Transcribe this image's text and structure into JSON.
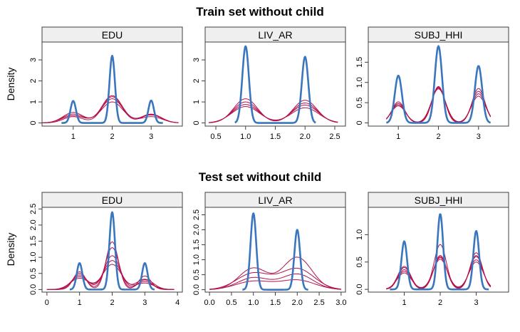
{
  "colors": {
    "observed": "#3a76bd",
    "imputed": "#b2124f",
    "strip": "#efefef",
    "frame": "#3f3f3f"
  },
  "ylabel": "Density",
  "rows": [
    {
      "title": "Train set without child"
    },
    {
      "title": "Test set without child"
    }
  ],
  "chart_data": [
    {
      "type": "line",
      "row": 0,
      "panel": 0,
      "strip": "EDU",
      "xlim": [
        0.2,
        3.8
      ],
      "ylim": [
        -0.15,
        3.85
      ],
      "xticks": [
        1,
        2,
        3
      ],
      "xtick_labels": [
        "1",
        "2",
        "3"
      ],
      "yticks": [
        0,
        1,
        2,
        3
      ],
      "ytick_labels": [
        "0",
        "1",
        "2",
        "3"
      ],
      "series": [
        {
          "kind": "observed",
          "x_range": [
            0.7,
            3.3
          ],
          "centers": [
            1,
            2,
            3
          ],
          "heights": [
            1.05,
            3.2,
            1.07
          ],
          "sd": 0.07
        },
        {
          "kind": "imputed",
          "x_range": [
            0.2,
            3.7
          ],
          "centers": [
            1,
            2,
            3
          ],
          "heights": [
            0.5,
            1.3,
            0.42
          ],
          "sd": 0.26
        },
        {
          "kind": "imputed",
          "x_range": [
            0.2,
            3.7
          ],
          "centers": [
            1,
            2,
            3
          ],
          "heights": [
            0.42,
            1.15,
            0.38
          ],
          "sd": 0.27
        },
        {
          "kind": "imputed",
          "x_range": [
            0.2,
            3.7
          ],
          "centers": [
            1,
            2,
            3
          ],
          "heights": [
            0.35,
            1.0,
            0.3
          ],
          "sd": 0.28
        },
        {
          "kind": "imputed",
          "x_range": [
            0.2,
            3.7
          ],
          "centers": [
            1,
            2,
            3
          ],
          "heights": [
            0.3,
            1.25,
            0.4
          ],
          "sd": 0.25
        }
      ]
    },
    {
      "type": "line",
      "row": 0,
      "panel": 1,
      "strip": "LIV_AR",
      "xlim": [
        0.32,
        2.68
      ],
      "ylim": [
        -0.15,
        3.85
      ],
      "xticks": [
        0.5,
        1.0,
        1.5,
        2.0,
        2.5
      ],
      "xtick_labels": [
        "0.5",
        "1.0",
        "1.5",
        "2.0",
        "2.5"
      ],
      "yticks": [
        0,
        1,
        2,
        3
      ],
      "ytick_labels": [
        "0",
        "1",
        "2",
        "3"
      ],
      "series": [
        {
          "kind": "observed",
          "x_range": [
            0.82,
            2.18
          ],
          "centers": [
            1,
            2
          ],
          "heights": [
            3.65,
            3.15
          ],
          "sd": 0.055
        },
        {
          "kind": "imputed",
          "x_range": [
            0.38,
            2.55
          ],
          "centers": [
            1,
            2
          ],
          "heights": [
            1.15,
            1.08
          ],
          "sd": 0.2
        },
        {
          "kind": "imputed",
          "x_range": [
            0.38,
            2.55
          ],
          "centers": [
            1,
            2
          ],
          "heights": [
            1.0,
            0.95
          ],
          "sd": 0.21
        },
        {
          "kind": "imputed",
          "x_range": [
            0.38,
            2.55
          ],
          "centers": [
            1,
            2
          ],
          "heights": [
            0.88,
            0.85
          ],
          "sd": 0.22
        },
        {
          "kind": "imputed",
          "x_range": [
            0.38,
            2.55
          ],
          "centers": [
            1,
            2
          ],
          "heights": [
            0.78,
            0.72
          ],
          "sd": 0.23
        }
      ]
    },
    {
      "type": "line",
      "row": 0,
      "panel": 2,
      "strip": "SUBJ_HHI",
      "xlim": [
        0.25,
        3.75
      ],
      "ylim": [
        -0.08,
        2.0
      ],
      "xticks": [
        1,
        2,
        3
      ],
      "xtick_labels": [
        "1",
        "2",
        "3"
      ],
      "yticks": [
        0,
        0.5,
        1.0,
        1.5
      ],
      "ytick_labels": [
        "0",
        "0.5",
        "1.0",
        "1.5"
      ],
      "series": [
        {
          "kind": "observed",
          "x_range": [
            0.7,
            3.3
          ],
          "centers": [
            1,
            2,
            3
          ],
          "heights": [
            1.17,
            1.9,
            1.41
          ],
          "sd": 0.09
        },
        {
          "kind": "imputed",
          "x_range": [
            0.7,
            3.3
          ],
          "centers": [
            1,
            2,
            3
          ],
          "heights": [
            0.52,
            0.9,
            0.85
          ],
          "sd": 0.16
        },
        {
          "kind": "imputed",
          "x_range": [
            0.7,
            3.3
          ],
          "centers": [
            1,
            2,
            3
          ],
          "heights": [
            0.48,
            0.88,
            0.78
          ],
          "sd": 0.17
        },
        {
          "kind": "imputed",
          "x_range": [
            0.7,
            3.3
          ],
          "centers": [
            1,
            2,
            3
          ],
          "heights": [
            0.45,
            0.86,
            0.72
          ],
          "sd": 0.17
        },
        {
          "kind": "imputed",
          "x_range": [
            0.7,
            3.3
          ],
          "centers": [
            1,
            2,
            3
          ],
          "heights": [
            0.42,
            0.84,
            0.66
          ],
          "sd": 0.18
        }
      ]
    },
    {
      "type": "line",
      "row": 1,
      "panel": 0,
      "strip": "EDU",
      "xlim": [
        -0.15,
        4.15
      ],
      "ylim": [
        -0.08,
        2.55
      ],
      "xticks": [
        0,
        1,
        2,
        3,
        4
      ],
      "xtick_labels": [
        "0",
        "1",
        "2",
        "3",
        "4"
      ],
      "yticks": [
        0,
        0.5,
        1.0,
        1.5,
        2.0,
        2.5
      ],
      "ytick_labels": [
        "0.0",
        "0.5",
        "1.0",
        "1.5",
        "2.0",
        "2.5"
      ],
      "series": [
        {
          "kind": "observed",
          "x_range": [
            0.7,
            3.3
          ],
          "centers": [
            1,
            2,
            3
          ],
          "heights": [
            0.82,
            2.4,
            0.82
          ],
          "sd": 0.085
        },
        {
          "kind": "imputed",
          "x_range": [
            0.0,
            3.9
          ],
          "centers": [
            1,
            2,
            3
          ],
          "heights": [
            0.55,
            1.48,
            0.42
          ],
          "sd": 0.19
        },
        {
          "kind": "imputed",
          "x_range": [
            0.0,
            3.9
          ],
          "centers": [
            1,
            2,
            3
          ],
          "heights": [
            0.5,
            1.3,
            0.3
          ],
          "sd": 0.21
        },
        {
          "kind": "imputed",
          "x_range": [
            0.0,
            3.9
          ],
          "centers": [
            1,
            2,
            3
          ],
          "heights": [
            0.45,
            1.05,
            0.25
          ],
          "sd": 0.24
        },
        {
          "kind": "imputed",
          "x_range": [
            0.0,
            3.9
          ],
          "centers": [
            1,
            2,
            3
          ],
          "heights": [
            0.4,
            0.9,
            0.32
          ],
          "sd": 0.26
        },
        {
          "kind": "imputed",
          "x_range": [
            0.0,
            3.9
          ],
          "centers": [
            1,
            2,
            3
          ],
          "heights": [
            0.35,
            0.78,
            0.2
          ],
          "sd": 0.28
        }
      ]
    },
    {
      "type": "line",
      "row": 1,
      "panel": 1,
      "strip": "LIV_AR",
      "xlim": [
        -0.1,
        3.1
      ],
      "ylim": [
        -0.08,
        2.75
      ],
      "xticks": [
        0.0,
        0.5,
        1.0,
        1.5,
        2.0,
        2.5,
        3.0
      ],
      "xtick_labels": [
        "0.0",
        "0.5",
        "1.0",
        "1.5",
        "2.0",
        "2.5",
        "3.0"
      ],
      "yticks": [
        0,
        0.5,
        1.0,
        1.5,
        2.0,
        2.5
      ],
      "ytick_labels": [
        "0.0",
        "0.5",
        "1.0",
        "1.5",
        "2.0",
        "2.5"
      ],
      "series": [
        {
          "kind": "observed",
          "x_range": [
            0.75,
            2.25
          ],
          "centers": [
            1,
            2
          ],
          "heights": [
            2.55,
            2.0
          ],
          "sd": 0.065
        },
        {
          "kind": "imputed",
          "x_range": [
            0.0,
            3.0
          ],
          "centers": [
            1,
            2
          ],
          "heights": [
            0.72,
            1.08
          ],
          "sd": 0.33
        },
        {
          "kind": "imputed",
          "x_range": [
            0.0,
            3.0
          ],
          "centers": [
            1,
            2
          ],
          "heights": [
            0.55,
            0.7
          ],
          "sd": 0.38
        },
        {
          "kind": "imputed",
          "x_range": [
            0.0,
            3.0
          ],
          "centers": [
            1,
            2
          ],
          "heights": [
            0.4,
            0.52
          ],
          "sd": 0.36
        },
        {
          "kind": "imputed",
          "x_range": [
            0.0,
            3.0
          ],
          "centers": [
            1,
            2
          ],
          "heights": [
            0.28,
            0.32
          ],
          "sd": 0.4
        }
      ]
    },
    {
      "type": "line",
      "row": 1,
      "panel": 2,
      "strip": "SUBJ_HHI",
      "xlim": [
        0.0,
        3.9
      ],
      "ylim": [
        -0.05,
        1.5
      ],
      "xticks": [
        1,
        2,
        3
      ],
      "xtick_labels": [
        "1",
        "2",
        "3"
      ],
      "yticks": [
        0,
        0.5,
        1.0
      ],
      "ytick_labels": [
        "0.0",
        "0.5",
        "1.0"
      ],
      "series": [
        {
          "kind": "observed",
          "x_range": [
            0.6,
            3.35
          ],
          "centers": [
            1,
            2,
            3
          ],
          "heights": [
            0.88,
            1.38,
            1.07
          ],
          "sd": 0.08
        },
        {
          "kind": "imputed",
          "x_range": [
            0.5,
            3.4
          ],
          "centers": [
            1,
            2,
            3
          ],
          "heights": [
            0.4,
            0.82,
            0.67
          ],
          "sd": 0.17
        },
        {
          "kind": "imputed",
          "x_range": [
            0.5,
            3.4
          ],
          "centers": [
            1,
            2,
            3
          ],
          "heights": [
            0.36,
            0.62,
            0.6
          ],
          "sd": 0.18
        },
        {
          "kind": "imputed",
          "x_range": [
            0.5,
            3.4
          ],
          "centers": [
            1,
            2,
            3
          ],
          "heights": [
            0.33,
            0.58,
            0.54
          ],
          "sd": 0.19
        },
        {
          "kind": "imputed",
          "x_range": [
            0.5,
            3.4
          ],
          "centers": [
            1,
            2,
            3
          ],
          "heights": [
            0.3,
            0.55,
            0.5
          ],
          "sd": 0.2
        },
        {
          "kind": "imputed",
          "x_range": [
            0.5,
            3.4
          ],
          "centers": [
            1,
            2,
            3
          ],
          "heights": [
            0.42,
            0.6,
            0.62
          ],
          "sd": 0.18
        }
      ]
    }
  ]
}
